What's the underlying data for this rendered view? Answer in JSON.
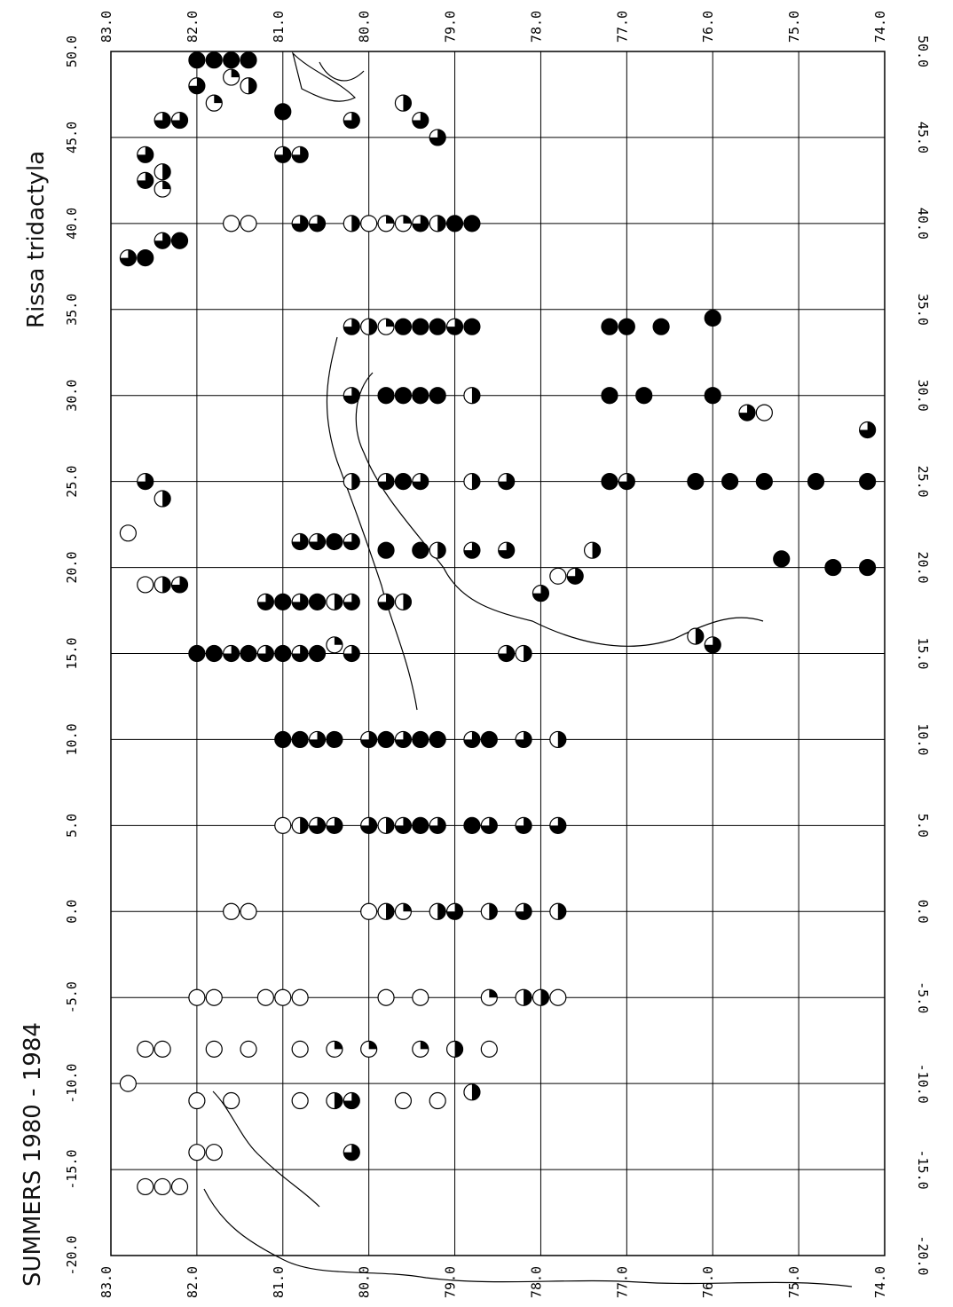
{
  "title": "Rissa tridactyla",
  "period_label": "SUMMERS   1980  -  1984",
  "colors": {
    "ink": "#000000",
    "paper": "#ffffff"
  },
  "axes": {
    "top_ticks": [
      "83.0",
      "82.0",
      "81.0",
      "80.0",
      "79.0",
      "78.0",
      "77.0",
      "76.0",
      "75.0",
      "74.0"
    ],
    "bottom_ticks": [
      "83.0",
      "82.0",
      "81.0",
      "80.0",
      "79.0",
      "78.0",
      "77.0",
      "76.0",
      "75.0",
      "74.0"
    ],
    "left_ticks": [
      "50.0",
      "45.0",
      "40.0",
      "35.0",
      "30.0",
      "25.0",
      "20.0",
      "15.0",
      "10.0",
      "5.0",
      "0.0",
      "-5.0",
      "-10.0",
      "-15.0",
      "-20.0"
    ],
    "right_ticks": [
      "50.0",
      "45.0",
      "40.0",
      "35.0",
      "30.0",
      "25.0",
      "20.0",
      "15.0",
      "10.0",
      "5.0",
      "0.0",
      "-5.0",
      "-10.0",
      "-15.0",
      "-20.0"
    ]
  },
  "chart_data": {
    "type": "scatter",
    "title": "Rissa tridactyla",
    "subtitle": "SUMMERS   1980  -  1984",
    "marker_legend": "circle fill fraction = share of observations",
    "lat_range": [
      74.0,
      83.0
    ],
    "lon_range": [
      -20.0,
      50.0
    ],
    "points": [
      {
        "lat": 82.0,
        "lon": 49.5,
        "fill": 1
      },
      {
        "lat": 81.8,
        "lon": 49.5,
        "fill": 1
      },
      {
        "lat": 81.6,
        "lon": 49.5,
        "fill": 1
      },
      {
        "lat": 81.4,
        "lon": 49.5,
        "fill": 1
      },
      {
        "lat": 82.0,
        "lon": 48.0,
        "fill": 0.75
      },
      {
        "lat": 81.6,
        "lon": 48.5,
        "fill": 0.25
      },
      {
        "lat": 81.4,
        "lon": 48.0,
        "fill": 0.5
      },
      {
        "lat": 82.4,
        "lon": 46.0,
        "fill": 0.75
      },
      {
        "lat": 82.2,
        "lon": 46.0,
        "fill": 0.75
      },
      {
        "lat": 81.8,
        "lon": 47.0,
        "fill": 0.25
      },
      {
        "lat": 81.0,
        "lon": 46.5,
        "fill": 1
      },
      {
        "lat": 82.6,
        "lon": 44.0,
        "fill": 0.75
      },
      {
        "lat": 82.6,
        "lon": 42.5,
        "fill": 0.75
      },
      {
        "lat": 82.4,
        "lon": 43.0,
        "fill": 0.5
      },
      {
        "lat": 82.4,
        "lon": 42.0,
        "fill": 0.25
      },
      {
        "lat": 81.0,
        "lon": 44.0,
        "fill": 0.75
      },
      {
        "lat": 80.8,
        "lon": 44.0,
        "fill": 0.75
      },
      {
        "lat": 80.2,
        "lon": 46.0,
        "fill": 0.75
      },
      {
        "lat": 79.6,
        "lon": 47.0,
        "fill": 0.5
      },
      {
        "lat": 79.4,
        "lon": 46.0,
        "fill": 0.75
      },
      {
        "lat": 79.2,
        "lon": 45.0,
        "fill": 0.75
      },
      {
        "lat": 82.2,
        "lon": 39.0,
        "fill": 1
      },
      {
        "lat": 82.4,
        "lon": 39.0,
        "fill": 0.75
      },
      {
        "lat": 82.6,
        "lon": 38.0,
        "fill": 1
      },
      {
        "lat": 82.8,
        "lon": 38.0,
        "fill": 0.75
      },
      {
        "lat": 81.6,
        "lon": 40.0,
        "fill": 0
      },
      {
        "lat": 81.4,
        "lon": 40.0,
        "fill": 0
      },
      {
        "lat": 80.8,
        "lon": 40.0,
        "fill": 0.75
      },
      {
        "lat": 80.6,
        "lon": 40.0,
        "fill": 0.75
      },
      {
        "lat": 80.2,
        "lon": 40.0,
        "fill": 0.5
      },
      {
        "lat": 80.0,
        "lon": 40.0,
        "fill": 0
      },
      {
        "lat": 79.8,
        "lon": 40.0,
        "fill": 0.25
      },
      {
        "lat": 79.6,
        "lon": 40.0,
        "fill": 0.25
      },
      {
        "lat": 79.4,
        "lon": 40.0,
        "fill": 0.75
      },
      {
        "lat": 79.2,
        "lon": 40.0,
        "fill": 0.5
      },
      {
        "lat": 79.0,
        "lon": 40.0,
        "fill": 1
      },
      {
        "lat": 78.8,
        "lon": 40.0,
        "fill": 1
      },
      {
        "lat": 80.2,
        "lon": 34.0,
        "fill": 0.75
      },
      {
        "lat": 80.0,
        "lon": 34.0,
        "fill": 0.5
      },
      {
        "lat": 79.8,
        "lon": 34.0,
        "fill": 0.25
      },
      {
        "lat": 79.6,
        "lon": 34.0,
        "fill": 1
      },
      {
        "lat": 79.4,
        "lon": 34.0,
        "fill": 1
      },
      {
        "lat": 79.2,
        "lon": 34.0,
        "fill": 1
      },
      {
        "lat": 79.0,
        "lon": 34.0,
        "fill": 0.75
      },
      {
        "lat": 78.8,
        "lon": 34.0,
        "fill": 1
      },
      {
        "lat": 77.2,
        "lon": 34.0,
        "fill": 1
      },
      {
        "lat": 77.0,
        "lon": 34.0,
        "fill": 1
      },
      {
        "lat": 76.6,
        "lon": 34.0,
        "fill": 1
      },
      {
        "lat": 76.0,
        "lon": 34.5,
        "fill": 1
      },
      {
        "lat": 80.2,
        "lon": 30.0,
        "fill": 0.75
      },
      {
        "lat": 79.8,
        "lon": 30.0,
        "fill": 1
      },
      {
        "lat": 79.6,
        "lon": 30.0,
        "fill": 1
      },
      {
        "lat": 79.4,
        "lon": 30.0,
        "fill": 1
      },
      {
        "lat": 79.2,
        "lon": 30.0,
        "fill": 1
      },
      {
        "lat": 78.8,
        "lon": 30.0,
        "fill": 0.5
      },
      {
        "lat": 77.2,
        "lon": 30.0,
        "fill": 1
      },
      {
        "lat": 76.8,
        "lon": 30.0,
        "fill": 1
      },
      {
        "lat": 76.0,
        "lon": 30.0,
        "fill": 1
      },
      {
        "lat": 75.6,
        "lon": 29.0,
        "fill": 0.75
      },
      {
        "lat": 75.4,
        "lon": 29.0,
        "fill": 0
      },
      {
        "lat": 74.2,
        "lon": 28.0,
        "fill": 0.75
      },
      {
        "lat": 80.2,
        "lon": 25.0,
        "fill": 0.5
      },
      {
        "lat": 79.8,
        "lon": 25.0,
        "fill": 0.75
      },
      {
        "lat": 79.6,
        "lon": 25.0,
        "fill": 1
      },
      {
        "lat": 79.4,
        "lon": 25.0,
        "fill": 0.75
      },
      {
        "lat": 78.8,
        "lon": 25.0,
        "fill": 0.5
      },
      {
        "lat": 78.4,
        "lon": 25.0,
        "fill": 0.75
      },
      {
        "lat": 77.2,
        "lon": 25.0,
        "fill": 1
      },
      {
        "lat": 77.0,
        "lon": 25.0,
        "fill": 0.75
      },
      {
        "lat": 76.2,
        "lon": 25.0,
        "fill": 1
      },
      {
        "lat": 75.8,
        "lon": 25.0,
        "fill": 1
      },
      {
        "lat": 75.4,
        "lon": 25.0,
        "fill": 1
      },
      {
        "lat": 74.8,
        "lon": 25.0,
        "fill": 1
      },
      {
        "lat": 74.2,
        "lon": 25.0,
        "fill": 1
      },
      {
        "lat": 82.6,
        "lon": 25.0,
        "fill": 0.75
      },
      {
        "lat": 82.4,
        "lon": 24.0,
        "fill": 0.5
      },
      {
        "lat": 82.8,
        "lon": 22.0,
        "fill": 0
      },
      {
        "lat": 80.8,
        "lon": 21.5,
        "fill": 0.75
      },
      {
        "lat": 80.6,
        "lon": 21.5,
        "fill": 0.75
      },
      {
        "lat": 80.4,
        "lon": 21.5,
        "fill": 1
      },
      {
        "lat": 80.2,
        "lon": 21.5,
        "fill": 0.75
      },
      {
        "lat": 79.8,
        "lon": 21.0,
        "fill": 1
      },
      {
        "lat": 79.4,
        "lon": 21.0,
        "fill": 1
      },
      {
        "lat": 79.2,
        "lon": 21.0,
        "fill": 0.5
      },
      {
        "lat": 78.8,
        "lon": 21.0,
        "fill": 0.75
      },
      {
        "lat": 78.4,
        "lon": 21.0,
        "fill": 0.75
      },
      {
        "lat": 77.4,
        "lon": 21.0,
        "fill": 0.5
      },
      {
        "lat": 75.2,
        "lon": 20.5,
        "fill": 1
      },
      {
        "lat": 74.6,
        "lon": 20.0,
        "fill": 1
      },
      {
        "lat": 74.2,
        "lon": 20.0,
        "fill": 1
      },
      {
        "lat": 82.6,
        "lon": 19.0,
        "fill": 0
      },
      {
        "lat": 82.4,
        "lon": 19.0,
        "fill": 0.5
      },
      {
        "lat": 82.2,
        "lon": 19.0,
        "fill": 0.75
      },
      {
        "lat": 81.2,
        "lon": 18.0,
        "fill": 0.75
      },
      {
        "lat": 81.0,
        "lon": 18.0,
        "fill": 1
      },
      {
        "lat": 80.8,
        "lon": 18.0,
        "fill": 0.75
      },
      {
        "lat": 80.6,
        "lon": 18.0,
        "fill": 1
      },
      {
        "lat": 80.4,
        "lon": 18.0,
        "fill": 0.5
      },
      {
        "lat": 80.2,
        "lon": 18.0,
        "fill": 0.75
      },
      {
        "lat": 79.8,
        "lon": 18.0,
        "fill": 0.75
      },
      {
        "lat": 79.6,
        "lon": 18.0,
        "fill": 0.5
      },
      {
        "lat": 78.0,
        "lon": 18.5,
        "fill": 0.75
      },
      {
        "lat": 77.8,
        "lon": 19.5,
        "fill": 0
      },
      {
        "lat": 77.6,
        "lon": 19.5,
        "fill": 0.75
      },
      {
        "lat": 82.0,
        "lon": 15.0,
        "fill": 1
      },
      {
        "lat": 81.8,
        "lon": 15.0,
        "fill": 1
      },
      {
        "lat": 81.6,
        "lon": 15.0,
        "fill": 0.75
      },
      {
        "lat": 81.4,
        "lon": 15.0,
        "fill": 1
      },
      {
        "lat": 81.2,
        "lon": 15.0,
        "fill": 0.75
      },
      {
        "lat": 81.0,
        "lon": 15.0,
        "fill": 1
      },
      {
        "lat": 80.8,
        "lon": 15.0,
        "fill": 0.75
      },
      {
        "lat": 80.6,
        "lon": 15.0,
        "fill": 1
      },
      {
        "lat": 80.4,
        "lon": 15.5,
        "fill": 0.25
      },
      {
        "lat": 80.2,
        "lon": 15.0,
        "fill": 0.75
      },
      {
        "lat": 78.4,
        "lon": 15.0,
        "fill": 0.75
      },
      {
        "lat": 78.2,
        "lon": 15.0,
        "fill": 0.5
      },
      {
        "lat": 76.2,
        "lon": 16.0,
        "fill": 0.5
      },
      {
        "lat": 76.0,
        "lon": 15.5,
        "fill": 0.75
      },
      {
        "lat": 81.0,
        "lon": 10.0,
        "fill": 1
      },
      {
        "lat": 80.8,
        "lon": 10.0,
        "fill": 1
      },
      {
        "lat": 80.6,
        "lon": 10.0,
        "fill": 0.75
      },
      {
        "lat": 80.4,
        "lon": 10.0,
        "fill": 1
      },
      {
        "lat": 80.0,
        "lon": 10.0,
        "fill": 0.75
      },
      {
        "lat": 79.8,
        "lon": 10.0,
        "fill": 1
      },
      {
        "lat": 79.6,
        "lon": 10.0,
        "fill": 0.75
      },
      {
        "lat": 79.4,
        "lon": 10.0,
        "fill": 1
      },
      {
        "lat": 79.2,
        "lon": 10.0,
        "fill": 1
      },
      {
        "lat": 78.8,
        "lon": 10.0,
        "fill": 0.75
      },
      {
        "lat": 78.6,
        "lon": 10.0,
        "fill": 1
      },
      {
        "lat": 78.2,
        "lon": 10.0,
        "fill": 0.75
      },
      {
        "lat": 77.8,
        "lon": 10.0,
        "fill": 0.5
      },
      {
        "lat": 81.0,
        "lon": 5.0,
        "fill": 0
      },
      {
        "lat": 80.8,
        "lon": 5.0,
        "fill": 0.5
      },
      {
        "lat": 80.6,
        "lon": 5.0,
        "fill": 0.75
      },
      {
        "lat": 80.4,
        "lon": 5.0,
        "fill": 0.75
      },
      {
        "lat": 80.0,
        "lon": 5.0,
        "fill": 0.75
      },
      {
        "lat": 79.8,
        "lon": 5.0,
        "fill": 0.5
      },
      {
        "lat": 79.6,
        "lon": 5.0,
        "fill": 0.75
      },
      {
        "lat": 79.4,
        "lon": 5.0,
        "fill": 1
      },
      {
        "lat": 79.2,
        "lon": 5.0,
        "fill": 0.75
      },
      {
        "lat": 78.8,
        "lon": 5.0,
        "fill": 1
      },
      {
        "lat": 78.6,
        "lon": 5.0,
        "fill": 0.75
      },
      {
        "lat": 78.2,
        "lon": 5.0,
        "fill": 0.75
      },
      {
        "lat": 77.8,
        "lon": 5.0,
        "fill": 0.75
      },
      {
        "lat": 81.6,
        "lon": 0.0,
        "fill": 0
      },
      {
        "lat": 81.4,
        "lon": 0.0,
        "fill": 0
      },
      {
        "lat": 80.0,
        "lon": 0.0,
        "fill": 0
      },
      {
        "lat": 79.8,
        "lon": 0.0,
        "fill": 0.5
      },
      {
        "lat": 79.6,
        "lon": 0.0,
        "fill": 0.25
      },
      {
        "lat": 79.2,
        "lon": 0.0,
        "fill": 0.5
      },
      {
        "lat": 79.0,
        "lon": 0.0,
        "fill": 0.75
      },
      {
        "lat": 78.6,
        "lon": 0.0,
        "fill": 0.5
      },
      {
        "lat": 78.2,
        "lon": 0.0,
        "fill": 0.75
      },
      {
        "lat": 77.8,
        "lon": 0.0,
        "fill": 0.5
      },
      {
        "lat": 82.0,
        "lon": -5.0,
        "fill": 0
      },
      {
        "lat": 81.8,
        "lon": -5.0,
        "fill": 0
      },
      {
        "lat": 81.2,
        "lon": -5.0,
        "fill": 0
      },
      {
        "lat": 81.0,
        "lon": -5.0,
        "fill": 0
      },
      {
        "lat": 80.8,
        "lon": -5.0,
        "fill": 0
      },
      {
        "lat": 79.8,
        "lon": -5.0,
        "fill": 0
      },
      {
        "lat": 79.4,
        "lon": -5.0,
        "fill": 0
      },
      {
        "lat": 78.6,
        "lon": -5.0,
        "fill": 0.25
      },
      {
        "lat": 78.2,
        "lon": -5.0,
        "fill": 0.5
      },
      {
        "lat": 78.0,
        "lon": -5.0,
        "fill": 0.5
      },
      {
        "lat": 77.8,
        "lon": -5.0,
        "fill": 0
      },
      {
        "lat": 82.8,
        "lon": -10.0,
        "fill": 0
      },
      {
        "lat": 82.6,
        "lon": -8.0,
        "fill": 0
      },
      {
        "lat": 82.4,
        "lon": -8.0,
        "fill": 0
      },
      {
        "lat": 81.8,
        "lon": -8.0,
        "fill": 0
      },
      {
        "lat": 81.4,
        "lon": -8.0,
        "fill": 0
      },
      {
        "lat": 80.8,
        "lon": -8.0,
        "fill": 0
      },
      {
        "lat": 80.4,
        "lon": -8.0,
        "fill": 0.25
      },
      {
        "lat": 80.0,
        "lon": -8.0,
        "fill": 0.25
      },
      {
        "lat": 79.4,
        "lon": -8.0,
        "fill": 0.25
      },
      {
        "lat": 79.0,
        "lon": -8.0,
        "fill": 0.5
      },
      {
        "lat": 78.6,
        "lon": -8.0,
        "fill": 0
      },
      {
        "lat": 82.0,
        "lon": -11.0,
        "fill": 0
      },
      {
        "lat": 81.6,
        "lon": -11.0,
        "fill": 0
      },
      {
        "lat": 80.8,
        "lon": -11.0,
        "fill": 0
      },
      {
        "lat": 80.4,
        "lon": -11.0,
        "fill": 0.5
      },
      {
        "lat": 80.2,
        "lon": -11.0,
        "fill": 0.75
      },
      {
        "lat": 79.6,
        "lon": -11.0,
        "fill": 0
      },
      {
        "lat": 79.2,
        "lon": -11.0,
        "fill": 0
      },
      {
        "lat": 78.8,
        "lon": -10.5,
        "fill": 0.5
      },
      {
        "lat": 82.0,
        "lon": -14.0,
        "fill": 0
      },
      {
        "lat": 81.8,
        "lon": -14.0,
        "fill": 0
      },
      {
        "lat": 80.2,
        "lon": -14.0,
        "fill": 0.75
      },
      {
        "lat": 82.6,
        "lon": -16.0,
        "fill": 0
      },
      {
        "lat": 82.4,
        "lon": -16.0,
        "fill": 0
      },
      {
        "lat": 82.2,
        "lon": -16.0,
        "fill": 0
      }
    ]
  }
}
